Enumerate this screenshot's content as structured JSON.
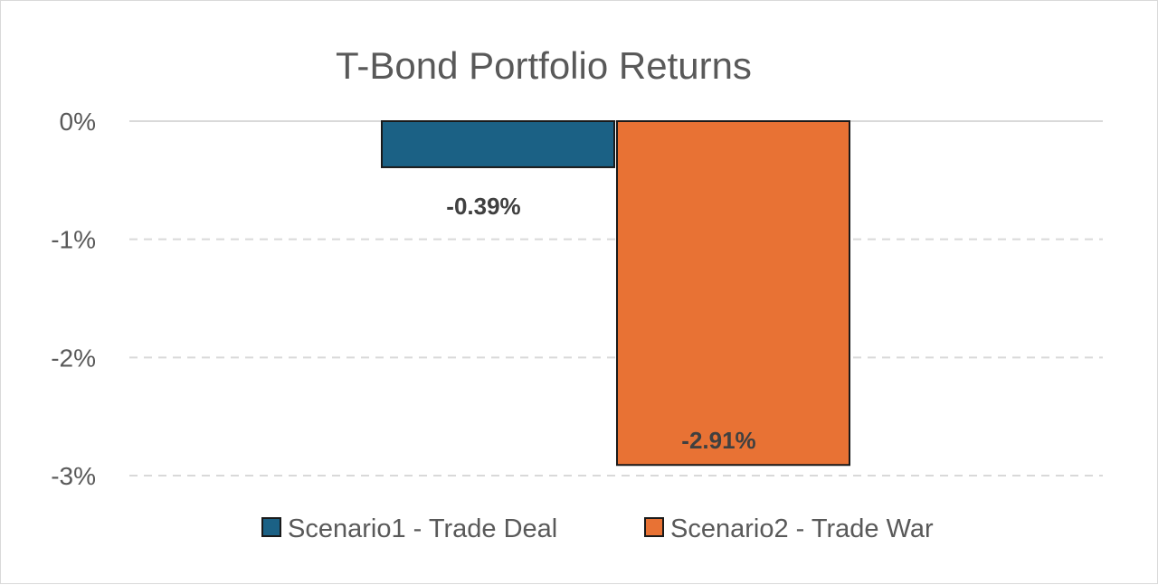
{
  "chart_data": {
    "type": "bar",
    "title": "T-Bond Portfolio Returns",
    "xlabel": "",
    "ylabel": "",
    "ylim": [
      -3,
      0
    ],
    "yticks": [
      {
        "value": 0,
        "label": "0%"
      },
      {
        "value": -1,
        "label": "-1%"
      },
      {
        "value": -2,
        "label": "-2%"
      },
      {
        "value": -3,
        "label": "-3%"
      }
    ],
    "grid": true,
    "legend_position": "bottom",
    "series": [
      {
        "name": "Scenario1 - Trade Deal",
        "values": [
          -0.39
        ],
        "label": "-0.39%",
        "color": "#1b6185"
      },
      {
        "name": "Scenario2 - Trade War",
        "values": [
          -2.91
        ],
        "label": "-2.91%",
        "color": "#e87234"
      }
    ]
  },
  "colors": {
    "gridline": "#d9d9d9",
    "axis_line": "#d9d9d9",
    "bar_border": "#1a1a1a",
    "text": "#595959",
    "label_text": "#404040"
  }
}
